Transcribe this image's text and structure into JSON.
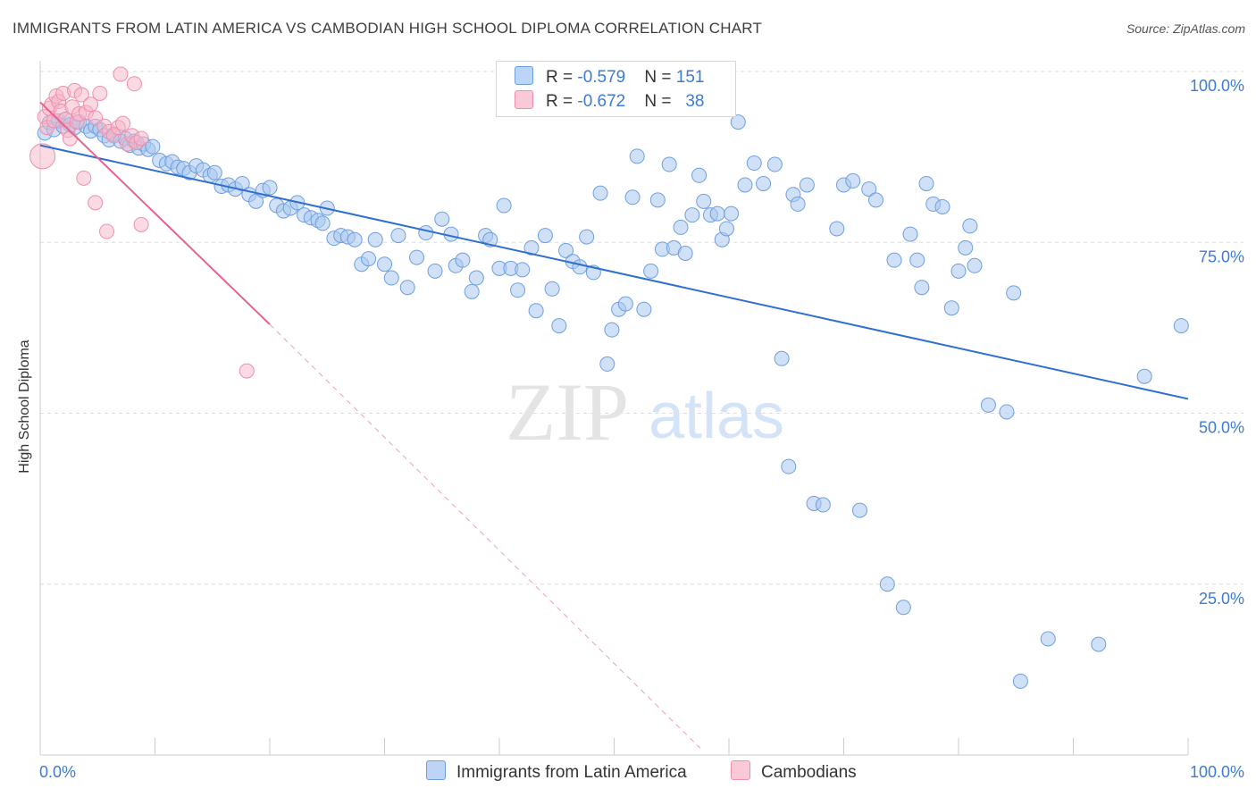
{
  "title": "IMMIGRANTS FROM LATIN AMERICA VS CAMBODIAN HIGH SCHOOL DIPLOMA CORRELATION CHART",
  "source": "Source: ZipAtlas.com",
  "watermark": {
    "zip": "ZIP",
    "atlas": "atlas"
  },
  "legend": {
    "rows": [
      {
        "r_label": "R = ",
        "r_value": "-0.579",
        "n_label": "N = ",
        "n_value": "151"
      },
      {
        "r_label": "R = ",
        "r_value": "-0.672",
        "n_label": "N = ",
        "n_value": "38"
      }
    ]
  },
  "colors": {
    "blue_fill": "#a9c8f0",
    "blue_stroke": "#6d9fe0",
    "blue_line": "#2f6fcf",
    "pink_fill": "#f7b6c8",
    "pink_stroke": "#ee8fab",
    "pink_line": "#e8618f",
    "tick_text": "#3d7bd6",
    "grid": "#dddddd"
  },
  "chart_data": {
    "type": "scatter",
    "title": "IMMIGRANTS FROM LATIN AMERICA VS CAMBODIAN HIGH SCHOOL DIPLOMA CORRELATION CHART",
    "xlabel": "",
    "ylabel": "High School Diploma",
    "xlim": [
      0,
      100
    ],
    "ylim": [
      0,
      100
    ],
    "x_tick_labels": [
      "0.0%",
      "100.0%"
    ],
    "y_tick_labels": [
      "100.0%",
      "75.0%",
      "50.0%",
      "25.0%"
    ],
    "y_ticks": [
      100,
      75,
      50,
      25
    ],
    "grid": true,
    "legend_position": "top-center",
    "series": [
      {
        "name": "Immigrants from Latin America",
        "color": "#a9c8f0",
        "trend": {
          "x": [
            0,
            100
          ],
          "y": [
            89.2,
            52.1
          ],
          "dashed_extension": false
        },
        "points": [
          [
            0.4,
            91
          ],
          [
            0.8,
            92.5
          ],
          [
            1.2,
            91.5
          ],
          [
            1.6,
            92.8
          ],
          [
            2,
            92
          ],
          [
            2.2,
            93
          ],
          [
            2.6,
            92.2
          ],
          [
            3,
            91.8
          ],
          [
            3.4,
            92.6
          ],
          [
            4,
            92
          ],
          [
            4.4,
            91.3
          ],
          [
            4.8,
            92
          ],
          [
            5.2,
            91.5
          ],
          [
            5.6,
            90.6
          ],
          [
            6,
            90
          ],
          [
            6.4,
            90.8
          ],
          [
            7,
            89.8
          ],
          [
            7.4,
            90.2
          ],
          [
            7.8,
            89.2
          ],
          [
            8.2,
            89.8
          ],
          [
            8.6,
            88.8
          ],
          [
            9,
            89.4
          ],
          [
            9.4,
            88.6
          ],
          [
            9.8,
            89
          ],
          [
            10.4,
            87
          ],
          [
            11,
            86.5
          ],
          [
            11.5,
            86.8
          ],
          [
            12,
            86
          ],
          [
            12.5,
            85.8
          ],
          [
            13,
            85.2
          ],
          [
            13.6,
            86.2
          ],
          [
            14.2,
            85.6
          ],
          [
            14.8,
            84.8
          ],
          [
            15.2,
            85.2
          ],
          [
            15.8,
            83.2
          ],
          [
            16.4,
            83.4
          ],
          [
            17,
            82.8
          ],
          [
            17.6,
            83.6
          ],
          [
            18.2,
            82
          ],
          [
            18.8,
            81
          ],
          [
            19.4,
            82.6
          ],
          [
            20,
            83
          ],
          [
            20.6,
            80.4
          ],
          [
            21.2,
            79.6
          ],
          [
            21.8,
            80
          ],
          [
            22.4,
            80.8
          ],
          [
            23,
            79
          ],
          [
            23.6,
            78.6
          ],
          [
            24.2,
            78.2
          ],
          [
            24.6,
            77.8
          ],
          [
            25,
            80
          ],
          [
            25.6,
            75.6
          ],
          [
            26.2,
            76
          ],
          [
            26.8,
            75.8
          ],
          [
            27.4,
            75.4
          ],
          [
            28,
            71.8
          ],
          [
            28.6,
            72.6
          ],
          [
            29.2,
            75.4
          ],
          [
            30,
            71.8
          ],
          [
            30.6,
            69.8
          ],
          [
            31.2,
            76
          ],
          [
            32,
            68.4
          ],
          [
            32.8,
            72.8
          ],
          [
            33.6,
            76.4
          ],
          [
            34.4,
            70.8
          ],
          [
            35,
            78.4
          ],
          [
            35.8,
            76.2
          ],
          [
            36.2,
            71.6
          ],
          [
            36.8,
            72.4
          ],
          [
            37.6,
            67.8
          ],
          [
            38,
            69.8
          ],
          [
            38.8,
            76
          ],
          [
            39.2,
            75.4
          ],
          [
            40,
            71.2
          ],
          [
            40.4,
            80.4
          ],
          [
            41,
            71.2
          ],
          [
            41.6,
            68
          ],
          [
            42,
            71
          ],
          [
            42.8,
            74.2
          ],
          [
            43.2,
            65
          ],
          [
            44,
            76
          ],
          [
            44.6,
            68.2
          ],
          [
            45.2,
            62.8
          ],
          [
            45.8,
            73.8
          ],
          [
            46.4,
            72.2
          ],
          [
            47,
            71.4
          ],
          [
            47.6,
            75.8
          ],
          [
            48.2,
            70.6
          ],
          [
            48.8,
            82.2
          ],
          [
            49.4,
            57.2
          ],
          [
            49.8,
            62.2
          ],
          [
            50.4,
            65.2
          ],
          [
            51,
            66
          ],
          [
            51.6,
            81.6
          ],
          [
            52,
            87.6
          ],
          [
            52.6,
            65.2
          ],
          [
            53.2,
            70.8
          ],
          [
            53.8,
            81.2
          ],
          [
            54.2,
            74
          ],
          [
            54.8,
            86.4
          ],
          [
            55.2,
            74.2
          ],
          [
            55.8,
            77.2
          ],
          [
            56.2,
            73.4
          ],
          [
            56.8,
            79
          ],
          [
            57.4,
            84.8
          ],
          [
            57.8,
            81
          ],
          [
            58.4,
            79
          ],
          [
            59,
            79.2
          ],
          [
            59.4,
            75.4
          ],
          [
            59.8,
            77
          ],
          [
            60.2,
            79.2
          ],
          [
            60.8,
            92.6
          ],
          [
            61.4,
            83.4
          ],
          [
            62.2,
            86.6
          ],
          [
            63,
            83.6
          ],
          [
            64,
            86.4
          ],
          [
            64.6,
            58
          ],
          [
            65.2,
            42.2
          ],
          [
            65.6,
            82
          ],
          [
            66,
            80.6
          ],
          [
            66.8,
            83.4
          ],
          [
            67.4,
            36.8
          ],
          [
            68.2,
            36.6
          ],
          [
            69.4,
            77
          ],
          [
            70,
            83.4
          ],
          [
            70.8,
            84
          ],
          [
            71.4,
            35.8
          ],
          [
            72.2,
            82.8
          ],
          [
            72.8,
            81.2
          ],
          [
            73.8,
            25
          ],
          [
            74.4,
            72.4
          ],
          [
            75.2,
            21.6
          ],
          [
            75.8,
            76.2
          ],
          [
            76.4,
            72.4
          ],
          [
            76.8,
            68.4
          ],
          [
            77.2,
            83.6
          ],
          [
            77.8,
            80.6
          ],
          [
            78.6,
            80.2
          ],
          [
            79.4,
            65.4
          ],
          [
            80,
            70.8
          ],
          [
            80.6,
            74.2
          ],
          [
            81,
            77.4
          ],
          [
            81.4,
            71.6
          ],
          [
            82.6,
            51.2
          ],
          [
            84.2,
            50.2
          ],
          [
            84.8,
            67.6
          ],
          [
            85.4,
            10.8
          ],
          [
            87.8,
            17
          ],
          [
            92.2,
            16.2
          ],
          [
            96.2,
            55.4
          ],
          [
            99.4,
            62.8
          ]
        ]
      },
      {
        "name": "Cambodians",
        "color": "#f7b6c8",
        "trend": {
          "x": [
            0,
            20
          ],
          "y": [
            95.5,
            63
          ],
          "dashed_extension": true,
          "dashed_to": [
            57.5,
            1
          ]
        },
        "points": [
          [
            0.2,
            87.6
          ],
          [
            0.4,
            93.4
          ],
          [
            0.6,
            91.8
          ],
          [
            0.8,
            94.6
          ],
          [
            1,
            95.2
          ],
          [
            1.2,
            92.8
          ],
          [
            1.4,
            96.4
          ],
          [
            1.6,
            95.6
          ],
          [
            1.8,
            94.2
          ],
          [
            2,
            96.8
          ],
          [
            2.2,
            93
          ],
          [
            2.4,
            91.4
          ],
          [
            2.6,
            90.2
          ],
          [
            2.8,
            94.8
          ],
          [
            3,
            97.2
          ],
          [
            3.2,
            92.6
          ],
          [
            3.4,
            93.8
          ],
          [
            3.6,
            96.6
          ],
          [
            4,
            94
          ],
          [
            4.4,
            95.2
          ],
          [
            4.8,
            93.2
          ],
          [
            5.2,
            96.8
          ],
          [
            5.6,
            92
          ],
          [
            6,
            91.2
          ],
          [
            6.4,
            90.6
          ],
          [
            6.8,
            91.8
          ],
          [
            7.2,
            92.4
          ],
          [
            7.6,
            89.4
          ],
          [
            8,
            90.6
          ],
          [
            8.4,
            89.6
          ],
          [
            8.8,
            90.2
          ],
          [
            3.8,
            84.4
          ],
          [
            4.8,
            80.8
          ],
          [
            5.8,
            76.6
          ],
          [
            7,
            99.6
          ],
          [
            8.2,
            98.2
          ],
          [
            8.8,
            77.6
          ],
          [
            18,
            56.2
          ]
        ]
      }
    ]
  }
}
